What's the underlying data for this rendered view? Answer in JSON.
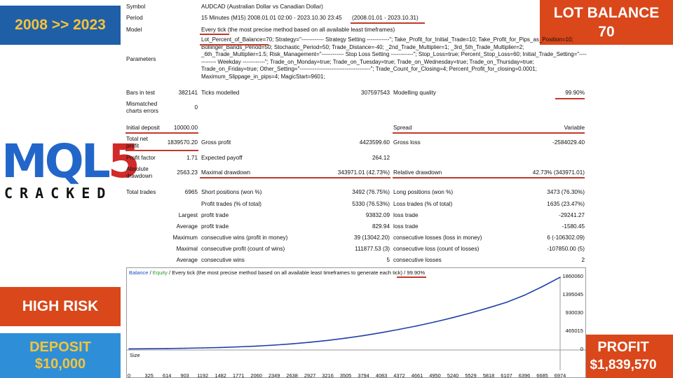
{
  "badges": {
    "period": "2008 >> 2023",
    "lot_balance_1": "LOT BALANCE",
    "lot_balance_2": "70",
    "high_risk": "HIGH RISK",
    "deposit_1": "DEPOSIT",
    "deposit_2": "$10,000",
    "profit_1": "PROFIT",
    "profit_2": "$1,839,570"
  },
  "logo": {
    "word": "MQL",
    "digit": "5",
    "sub": "CRACKED"
  },
  "report": {
    "symbol_label": "Symbol",
    "symbol_value": "AUDCAD (Australian Dollar vs Canadian Dollar)",
    "period_label": "Period",
    "period_value": "15 Minutes (M15) 2008.01.01 02:00 - 2023.10.30 23:45",
    "period_range": "(2008.01.01 - 2023.10.31)",
    "model_label": "Model",
    "model_value": "Every tick (the most precise method based on all available least timeframes)",
    "parameters_label": "Parameters",
    "parameters_text": "Lot_Percent_of_Balance=70; Strategy=\"------------ Strategy Setting ------------\"; Take_Profit_for_Initial_Trade=10; Take_Profit_for_Pips_as_Position=10; Bollinger_Bands_Period=50; Stochastic_Period=50; Trade_Distance=-40; _2nd_Trade_Multiplier=1; _3rd_5th_Trade_Multiplier=2; _6th_Trade_Multiplier=1.5; Risk_Management=\"------------ Stop Loss Setting ------------\"; Stop_Loss=true; Percent_Stop_Loss=60; Initial_Trade_Setting=\"------------ Weekday ------------\"; Trade_on_Monday=true; Trade_on_Tuesday=true; Trade_on_Wednesday=true; Trade_on_Thursday=true; Trade_on_Friday=true; Other_Setting=\"--------------------------------------\"; Trade_Count_for_Closing=4; Percent_Profit_for_closing=0.0001; Maximum_Slippage_in_pips=4; MagicStart=9601;",
    "bars_label": "Bars in test",
    "bars_value": "382141",
    "ticks_label": "Ticks modelled",
    "ticks_value": "307597543",
    "quality_label": "Modelling quality",
    "quality_value": "99.90%",
    "mismatched_label_1": "Mismatched",
    "mismatched_label_2": "charts errors",
    "mismatched_value": "0",
    "deposit_label": "Initial deposit",
    "deposit_value": "10000.00",
    "spread_label": "Spread",
    "spread_value": "Variable",
    "net_profit_label_1": "Total net",
    "net_profit_label_2": "profit",
    "net_profit_value": "1839570.20",
    "gross_profit_label": "Gross profit",
    "gross_profit_value": "4423599.60",
    "gross_loss_label": "Gross loss",
    "gross_loss_value": "-2584029.40",
    "profit_factor_label": "Profit factor",
    "profit_factor_value": "1.71",
    "expected_payoff_label": "Expected payoff",
    "expected_payoff_value": "264.12",
    "abs_dd_label_1": "Absolute",
    "abs_dd_label_2": "drawdown",
    "abs_dd_value": "2563.23",
    "max_dd_label": "Maximal drawdown",
    "max_dd_value": "343971.01 (42.73%)",
    "rel_dd_label": "Relative drawdown",
    "rel_dd_value": "42.73% (343971.01)",
    "total_trades_label": "Total trades",
    "total_trades_value": "6965",
    "short_label": "Short positions (won %)",
    "short_value": "3492 (76.75%)",
    "long_label": "Long positions (won %)",
    "long_value": "3473 (76.30%)",
    "profit_trades_label": "Profit trades (% of total)",
    "profit_trades_value": "5330 (76.53%)",
    "loss_trades_label": "Loss trades (% of total)",
    "loss_trades_value": "1635 (23.47%)",
    "largest_label": "Largest",
    "largest_profit_label": "profit trade",
    "largest_profit_value": "93832.09",
    "largest_loss_label": "loss trade",
    "largest_loss_value": "-29241.27",
    "average_label": "Average",
    "average_profit_label": "profit trade",
    "average_profit_value": "829.94",
    "average_loss_label": "loss trade",
    "average_loss_value": "-1580.45",
    "maximum_label": "Maximum",
    "max_cons_wins_label": "consecutive wins (profit in money)",
    "max_cons_wins_value": "39 (13042.20)",
    "max_cons_losses_label": "consecutive losses (loss in money)",
    "max_cons_losses_value": "6 (-106302.09)",
    "maximal_label": "Maximal",
    "maximal_profit_label": "consecutive profit (count of wins)",
    "maximal_profit_value": "111877.53 (3)",
    "maximal_loss_label": "consecutive loss (count of losses)",
    "maximal_loss_value": "-107850.00 (5)",
    "average2_label": "Average",
    "avg_cons_wins_label": "consecutive wins",
    "avg_cons_wins_value": "5",
    "avg_cons_losses_label": "consecutive losses",
    "avg_cons_losses_value": "2"
  },
  "colors": {
    "balance": "#1f3fa8",
    "equity": "#2a9a2a",
    "underline": "#c0392b"
  },
  "chart_data": {
    "type": "line",
    "legend": {
      "balance": "Balance",
      "sep": " / ",
      "equity": "Equity",
      "desc": " / Every tick (the most precise method based on all available least timeframes to generate each tick)",
      "quality": " / 99.90%"
    },
    "size_label": "Size",
    "x": [
      0,
      325,
      614,
      903,
      1192,
      1482,
      1771,
      2060,
      2349,
      2638,
      2927,
      3216,
      3505,
      3794,
      4083,
      4372,
      4661,
      4950,
      5240,
      5529,
      5818,
      6107,
      6396,
      6685,
      6974
    ],
    "x_ticks": [
      "0",
      "325",
      "614",
      "903",
      "1192",
      "1482",
      "1771",
      "2060",
      "2349",
      "2638",
      "2927",
      "3216",
      "3505",
      "3794",
      "4083",
      "4372",
      "4661",
      "4950",
      "5240",
      "5529",
      "5818",
      "6107",
      "6396",
      "6685",
      "6974"
    ],
    "y_ticks": [
      "1860060",
      "1395045",
      "930030",
      "465015",
      "0"
    ],
    "ylim": [
      0,
      1860060
    ],
    "series": [
      {
        "name": "Balance",
        "values": [
          10000,
          14000,
          19000,
          26000,
          35000,
          47000,
          62000,
          82000,
          108000,
          140000,
          180000,
          228000,
          285000,
          350000,
          425000,
          510000,
          600000,
          700000,
          810000,
          930000,
          1060000,
          1200000,
          1380000,
          1600000,
          1839570
        ]
      }
    ]
  }
}
